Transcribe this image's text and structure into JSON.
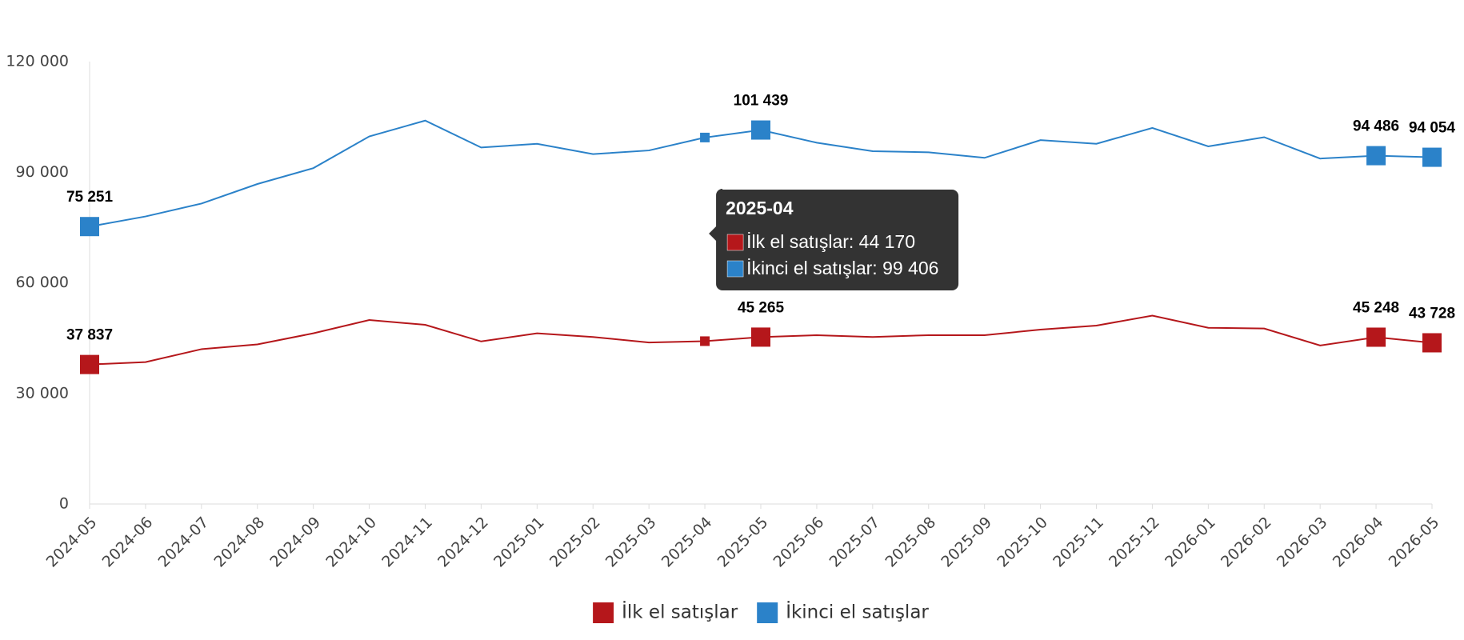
{
  "chart_data": {
    "type": "line",
    "categories": [
      "2024-05",
      "2024-06",
      "2024-07",
      "2024-08",
      "2024-09",
      "2024-10",
      "2024-11",
      "2024-12",
      "2025-01",
      "2025-02",
      "2025-03",
      "2025-04",
      "2025-05",
      "2025-06",
      "2025-07",
      "2025-08",
      "2025-09",
      "2025-10",
      "2025-11",
      "2025-12",
      "2026-01",
      "2026-02",
      "2026-03",
      "2026-04",
      "2026-05"
    ],
    "series": [
      {
        "name": "İlk el satışlar",
        "color": "#b5171b",
        "values": [
          37837,
          38500,
          42000,
          43300,
          46300,
          49900,
          48600,
          44100,
          46300,
          45300,
          43800,
          44170,
          45265,
          45800,
          45300,
          45800,
          45800,
          47300,
          48400,
          51100,
          47800,
          47600,
          43000,
          45248,
          43728
        ],
        "value_labels": [
          "37 837",
          null,
          null,
          null,
          null,
          null,
          null,
          null,
          null,
          null,
          null,
          null,
          "45 265",
          null,
          null,
          null,
          null,
          null,
          null,
          null,
          null,
          null,
          null,
          "45 248",
          "43 728"
        ]
      },
      {
        "name": "İkinci el satışlar",
        "color": "#2b82c9",
        "values": [
          75251,
          78000,
          81500,
          86800,
          91100,
          99700,
          104000,
          96700,
          97700,
          94900,
          95900,
          99406,
          101439,
          98000,
          95700,
          95400,
          93900,
          98700,
          97700,
          102000,
          97000,
          99500,
          93700,
          94486,
          94054
        ],
        "value_labels": [
          "75 251",
          null,
          null,
          null,
          null,
          null,
          null,
          null,
          null,
          null,
          null,
          null,
          "101 439",
          null,
          null,
          null,
          null,
          null,
          null,
          null,
          null,
          null,
          null,
          "94 486",
          "94 054"
        ]
      }
    ],
    "ylim": [
      0,
      120000
    ],
    "yticks": [
      0,
      {
        "value": 30000,
        "label": "30 000"
      },
      {
        "value": 60000,
        "label": "60 000"
      },
      {
        "value": 90000,
        "label": "90 000"
      },
      {
        "value": 120000,
        "label": "120 000"
      }
    ],
    "legend": "bottom",
    "tooltip": {
      "title": "2025-04",
      "lines": [
        "İlk el satışlar: 44 170",
        "İkinci el satışlar: 99 406"
      ]
    }
  }
}
